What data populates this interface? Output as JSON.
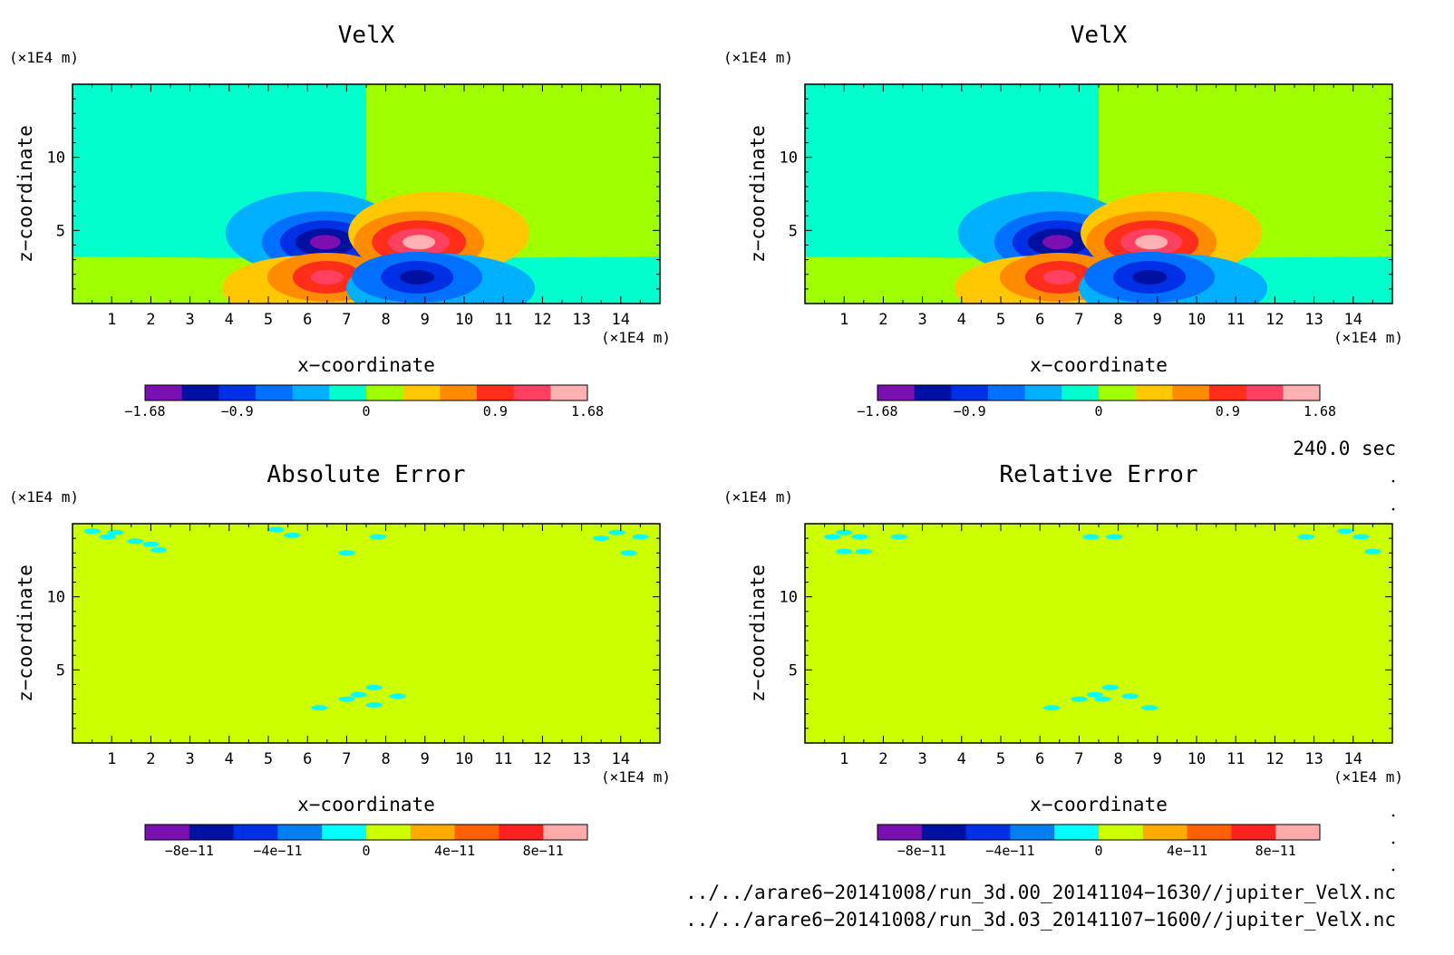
{
  "chart_data": [
    {
      "type": "heatmap",
      "title": "VelX",
      "xlabel": "x−coordinate",
      "ylabel": "z−coordinate",
      "x_unit": "(×1E4 m)",
      "y_unit": "(×1E4 m)",
      "xlim": [
        0,
        15
      ],
      "ylim": [
        0,
        15
      ],
      "xticks": [
        "1",
        "2",
        "3",
        "4",
        "5",
        "6",
        "7",
        "8",
        "9",
        "10",
        "11",
        "12",
        "13",
        "14"
      ],
      "yticks": [
        "5",
        "10"
      ],
      "colorbar_ticks": [
        "−1.68",
        "−0.9",
        "0",
        "0.9",
        "1.68"
      ],
      "colorbar_colors": [
        "#7a10b0",
        "#0010a0",
        "#0030e6",
        "#0070ff",
        "#00b0ff",
        "#00ffcc",
        "#a0ff00",
        "#ffc800",
        "#ff8c00",
        "#ff2e1a",
        "#ff4060",
        "#ffb0b0"
      ],
      "features": {
        "center_x": 7.5,
        "split_z": 3.2,
        "upper_left_lobe_min": [
          6.4,
          4.2
        ],
        "upper_right_lobe_max": [
          8.8,
          4.2
        ],
        "lower_left_lobe_max": [
          6.4,
          1.8
        ],
        "lower_right_lobe_min": [
          8.8,
          1.8
        ]
      }
    },
    {
      "type": "heatmap",
      "title": "VelX",
      "xlabel": "x−coordinate",
      "ylabel": "z−coordinate",
      "x_unit": "(×1E4 m)",
      "y_unit": "(×1E4 m)",
      "xlim": [
        0,
        15
      ],
      "ylim": [
        0,
        15
      ],
      "xticks": [
        "1",
        "2",
        "3",
        "4",
        "5",
        "6",
        "7",
        "8",
        "9",
        "10",
        "11",
        "12",
        "13",
        "14"
      ],
      "yticks": [
        "5",
        "10"
      ],
      "colorbar_ticks": [
        "−1.68",
        "−0.9",
        "0",
        "0.9",
        "1.68"
      ],
      "colorbar_colors": [
        "#7a10b0",
        "#0010a0",
        "#0030e6",
        "#0070ff",
        "#00b0ff",
        "#00ffcc",
        "#a0ff00",
        "#ffc800",
        "#ff8c00",
        "#ff2e1a",
        "#ff4060",
        "#ffb0b0"
      ]
    },
    {
      "type": "heatmap",
      "title": "Absolute Error",
      "xlabel": "x−coordinate",
      "ylabel": "z−coordinate",
      "x_unit": "(×1E4 m)",
      "y_unit": "(×1E4 m)",
      "xlim": [
        0,
        15
      ],
      "ylim": [
        0,
        15
      ],
      "xticks": [
        "1",
        "2",
        "3",
        "4",
        "5",
        "6",
        "7",
        "8",
        "9",
        "10",
        "11",
        "12",
        "13",
        "14"
      ],
      "yticks": [
        "5",
        "10"
      ],
      "colorbar_ticks": [
        "−8e−11",
        "−4e−11",
        "0",
        "4e−11",
        "8e−11"
      ],
      "colorbar_colors": [
        "#7a10b0",
        "#0010a0",
        "#0030e6",
        "#0080f0",
        "#00ffff",
        "#ccff00",
        "#ffaa00",
        "#ff6000",
        "#ff2020",
        "#ffaaaa"
      ],
      "background_level": "0 to 4e−11",
      "spots_level": "−1e−11 to 0",
      "spots": [
        [
          0.5,
          14.5
        ],
        [
          0.9,
          14.1
        ],
        [
          1.1,
          14.4
        ],
        [
          1.6,
          13.8
        ],
        [
          2.0,
          13.6
        ],
        [
          2.2,
          13.2
        ],
        [
          5.2,
          14.6
        ],
        [
          5.6,
          14.2
        ],
        [
          7.0,
          13.0
        ],
        [
          7.8,
          14.1
        ],
        [
          6.3,
          2.4
        ],
        [
          7.0,
          3.0
        ],
        [
          7.3,
          3.3
        ],
        [
          7.7,
          3.8
        ],
        [
          8.3,
          3.2
        ],
        [
          7.7,
          2.6
        ],
        [
          13.5,
          14.0
        ],
        [
          13.9,
          14.4
        ],
        [
          14.2,
          13.0
        ],
        [
          14.5,
          14.1
        ]
      ]
    },
    {
      "type": "heatmap",
      "title": "Relative Error",
      "xlabel": "x−coordinate",
      "ylabel": "z−coordinate",
      "x_unit": "(×1E4 m)",
      "y_unit": "(×1E4 m)",
      "xlim": [
        0,
        15
      ],
      "ylim": [
        0,
        15
      ],
      "xticks": [
        "1",
        "2",
        "3",
        "4",
        "5",
        "6",
        "7",
        "8",
        "9",
        "10",
        "11",
        "12",
        "13",
        "14"
      ],
      "yticks": [
        "5",
        "10"
      ],
      "colorbar_ticks": [
        "−8e−11",
        "−4e−11",
        "0",
        "4e−11",
        "8e−11"
      ],
      "colorbar_colors": [
        "#7a10b0",
        "#0010a0",
        "#0030e6",
        "#0080f0",
        "#00ffff",
        "#ccff00",
        "#ffaa00",
        "#ff6000",
        "#ff2020",
        "#ffaaaa"
      ],
      "background_level": "0 to 4e−11",
      "spots_level": "−1e−11 to 0",
      "spots": [
        [
          0.7,
          14.1
        ],
        [
          1.0,
          14.4
        ],
        [
          1.4,
          14.1
        ],
        [
          1.5,
          13.1
        ],
        [
          1.0,
          13.1
        ],
        [
          2.4,
          14.1
        ],
        [
          7.3,
          14.1
        ],
        [
          7.9,
          14.1
        ],
        [
          6.3,
          2.4
        ],
        [
          7.0,
          3.0
        ],
        [
          7.4,
          3.3
        ],
        [
          7.8,
          3.8
        ],
        [
          8.3,
          3.2
        ],
        [
          8.8,
          2.4
        ],
        [
          7.6,
          3.0
        ],
        [
          12.8,
          14.1
        ],
        [
          13.8,
          14.5
        ],
        [
          14.2,
          14.1
        ],
        [
          14.5,
          13.1
        ]
      ]
    }
  ],
  "time_label": "240.0 sec",
  "file_lines": [
    "../../arare6−20141008/run_3d.00_20141104−1630//jupiter_VelX.nc",
    "../../arare6−20141008/run_3d.03_20141107−1600//jupiter_VelX.nc"
  ]
}
